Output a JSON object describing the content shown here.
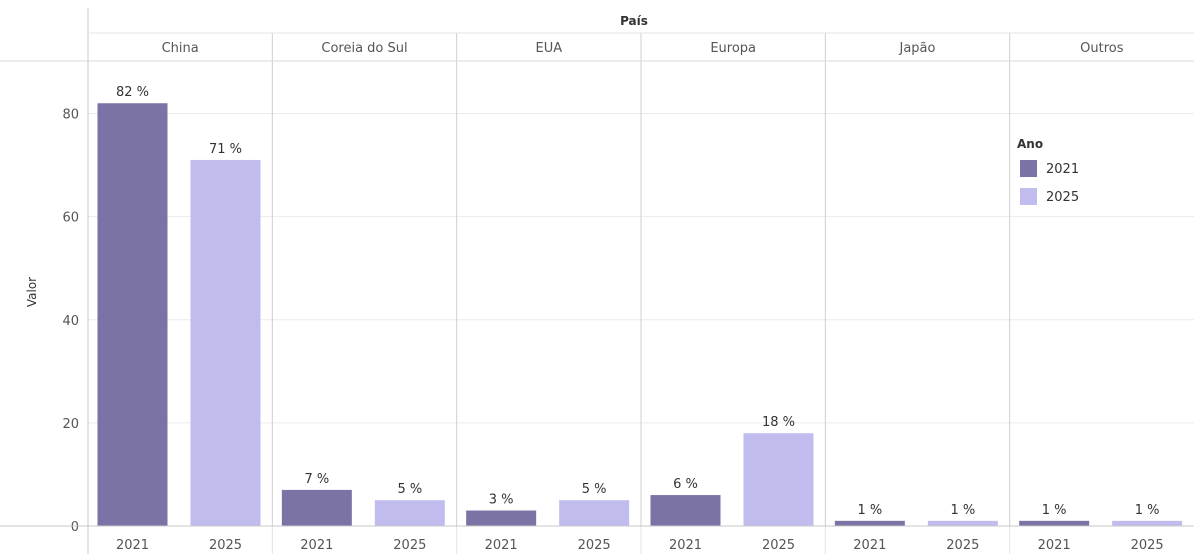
{
  "chart_data": {
    "type": "bar",
    "title": "",
    "column_header": "País",
    "ylabel": "Valor",
    "xlabel": "",
    "ylim": [
      0,
      90
    ],
    "yticks": [
      0,
      20,
      40,
      60,
      80
    ],
    "grid": true,
    "legend_placement": "right",
    "legend_title": "Ano",
    "years": [
      "2021",
      "2025"
    ],
    "groups": [
      "China",
      "Coreia do Sul",
      "EUA",
      "Europa",
      "Japão",
      "Outros"
    ],
    "series": [
      {
        "name": "2021",
        "color": "#7b72a6",
        "values": [
          82,
          7,
          3,
          6,
          1,
          1
        ],
        "labels": [
          "82 %",
          "7 %",
          "3 %",
          "6 %",
          "1 %",
          "1 %"
        ]
      },
      {
        "name": "2025",
        "color": "#c1bcee",
        "values": [
          71,
          5,
          5,
          18,
          1,
          1
        ],
        "labels": [
          "71 %",
          "5 %",
          "5 %",
          "18 %",
          "1 %",
          "1 %"
        ]
      }
    ]
  }
}
